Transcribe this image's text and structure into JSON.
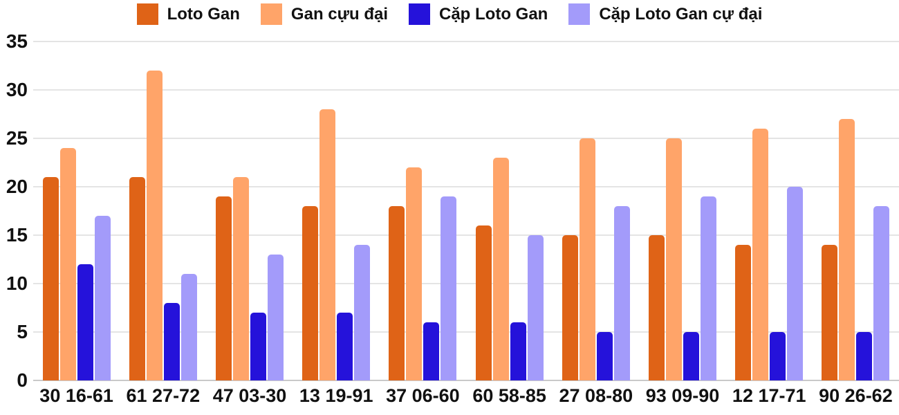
{
  "chart_data": {
    "type": "bar",
    "title": "",
    "xlabel": "",
    "ylabel": "",
    "categories": [
      "30 16-61",
      "61 27-72",
      "47 03-30",
      "13 19-91",
      "37 06-60",
      "60 58-85",
      "27 08-80",
      "93 09-90",
      "12 17-71",
      "90 26-62"
    ],
    "series": [
      {
        "name": "Loto Gan",
        "color": "#df6317",
        "values": [
          21,
          21,
          19,
          18,
          18,
          16,
          15,
          15,
          14,
          14
        ]
      },
      {
        "name": "Gan cựu đại",
        "color": "#ffa469",
        "values": [
          24,
          32,
          21,
          28,
          22,
          23,
          25,
          25,
          26,
          27
        ]
      },
      {
        "name": "Cặp Loto Gan",
        "color": "#2512da",
        "values": [
          12,
          8,
          7,
          7,
          6,
          6,
          5,
          5,
          5,
          5
        ]
      },
      {
        "name": "Cặp Loto Gan cự đại",
        "color": "#a39bfa",
        "values": [
          17,
          11,
          13,
          14,
          19,
          15,
          18,
          19,
          20,
          18
        ]
      }
    ],
    "ylim": [
      0,
      35
    ],
    "yticks": [
      0,
      5,
      10,
      15,
      20,
      25,
      30,
      35
    ],
    "grid": true,
    "legend_position": "top",
    "axis_text_color": "#111111",
    "gridline_color": "#e4e4e4",
    "baseline_color": "#c9c9c9",
    "background_color": "#ffffff"
  }
}
